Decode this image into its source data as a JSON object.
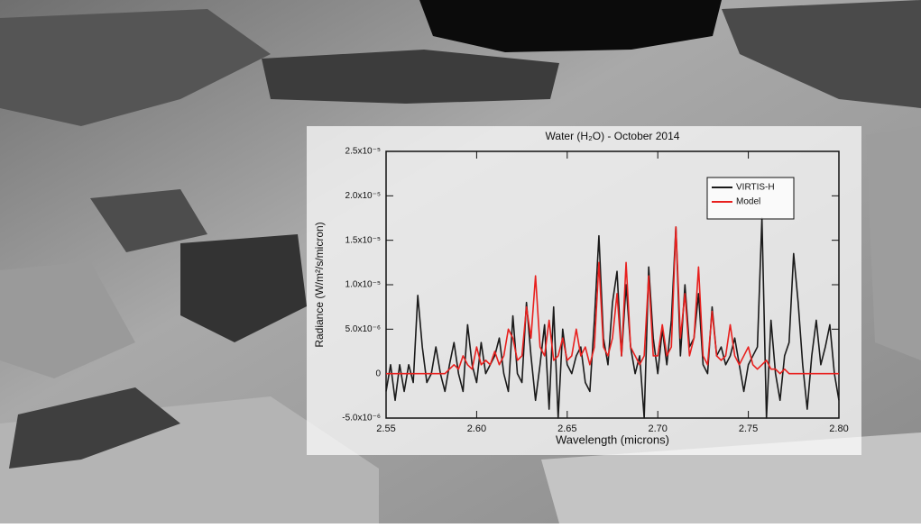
{
  "chart_data": {
    "type": "line",
    "title": "Water (H₂O) - October 2014",
    "x_label": "Wavelength (microns)",
    "y_label": "Radiance (W/m²/s/micron)",
    "xlim": [
      2.55,
      2.8
    ],
    "xticks": [
      2.55,
      {
        "value": 2.6,
        "label": "2.60"
      },
      2.65,
      {
        "value": 2.7,
        "label": "2.70"
      },
      2.75,
      {
        "value": 2.8,
        "label": "2.80"
      }
    ],
    "ylim": [
      -5e-06,
      2.5e-05
    ],
    "yticks": [
      {
        "value": -5e-06,
        "label": "-5.0x10⁻⁶"
      },
      0,
      {
        "value": 5e-06,
        "label": "5.0x10⁻⁶"
      },
      {
        "value": 1e-05,
        "label": "1.0x10⁻⁵"
      },
      {
        "value": 1.5e-05,
        "label": "1.5x10⁻⁵"
      },
      {
        "value": 2e-05,
        "label": "2.0x10⁻⁵"
      },
      {
        "value": 2.5e-05,
        "label": "2.5x10⁻⁵"
      }
    ],
    "legend": "upper right",
    "x": [
      2.55,
      2.5525,
      2.555,
      2.5575,
      2.56,
      2.5625,
      2.565,
      2.5675,
      2.57,
      2.5725,
      2.575,
      2.5775,
      2.58,
      2.5825,
      2.585,
      2.5875,
      2.59,
      2.5925,
      2.595,
      2.5975,
      2.6,
      2.6025,
      2.605,
      2.6075,
      2.61,
      2.6125,
      2.615,
      2.6175,
      2.62,
      2.6225,
      2.625,
      2.6275,
      2.63,
      2.6325,
      2.635,
      2.6375,
      2.64,
      2.6425,
      2.645,
      2.6475,
      2.65,
      2.6525,
      2.655,
      2.6575,
      2.66,
      2.6625,
      2.665,
      2.6675,
      2.67,
      2.6725,
      2.675,
      2.6775,
      2.68,
      2.6825,
      2.685,
      2.6875,
      2.69,
      2.6925,
      2.695,
      2.6975,
      2.7,
      2.7025,
      2.705,
      2.7075,
      2.71,
      2.7125,
      2.715,
      2.7175,
      2.72,
      2.7225,
      2.725,
      2.7275,
      2.73,
      2.7325,
      2.735,
      2.7375,
      2.74,
      2.7425,
      2.745,
      2.7475,
      2.75,
      2.7525,
      2.755,
      2.7575,
      2.76,
      2.7625,
      2.765,
      2.7675,
      2.77,
      2.7725,
      2.775,
      2.7775,
      2.78,
      2.7825,
      2.785,
      2.7875,
      2.79,
      2.7925,
      2.795,
      2.7975,
      2.8
    ],
    "series": [
      {
        "name": "VIRTIS-H",
        "color": "#1a1a1a",
        "values": [
          -2e-06,
          1e-06,
          -3e-06,
          1e-06,
          -2e-06,
          1e-06,
          -1e-06,
          8.8e-06,
          3e-06,
          -1e-06,
          0,
          3e-06,
          0,
          -2e-06,
          1e-06,
          3.5e-06,
          0,
          -2e-06,
          5.5e-06,
          1e-06,
          -1e-06,
          3.5e-06,
          0,
          1e-06,
          2e-06,
          4e-06,
          0,
          -2e-06,
          6.5e-06,
          0,
          -1e-06,
          8e-06,
          2e-06,
          -3e-06,
          1e-06,
          5.5e-06,
          -4e-06,
          7.5e-06,
          -5e-06,
          5e-06,
          1e-06,
          0,
          2e-06,
          3e-06,
          -1e-06,
          -2e-06,
          6e-06,
          1.55e-05,
          4e-06,
          1e-06,
          8e-06,
          1.15e-05,
          2e-06,
          1e-05,
          3e-06,
          0,
          2e-06,
          -5e-06,
          1.2e-05,
          4e-06,
          0,
          5e-06,
          1e-06,
          6e-06,
          1.65e-05,
          2e-06,
          1e-05,
          3e-06,
          4e-06,
          9e-06,
          1e-06,
          0,
          7.5e-06,
          2e-06,
          3e-06,
          1e-06,
          2e-06,
          4e-06,
          1e-06,
          -2e-06,
          1e-06,
          2e-06,
          3e-06,
          1.75e-05,
          -5e-06,
          6e-06,
          0,
          -3e-06,
          2e-06,
          3.5e-06,
          1.35e-05,
          8e-06,
          1e-06,
          -4e-06,
          2e-06,
          6e-06,
          1e-06,
          3e-06,
          5.5e-06,
          0,
          -3e-06
        ]
      },
      {
        "name": "Model",
        "color": "#e8201e",
        "values": [
          0,
          0,
          0,
          0,
          0,
          0,
          0,
          0,
          0,
          0,
          0,
          0,
          0,
          0,
          5e-07,
          1e-06,
          5e-07,
          2e-06,
          1e-06,
          5e-07,
          3e-06,
          1e-06,
          1.5e-06,
          1e-06,
          2.5e-06,
          1e-06,
          2e-06,
          5e-06,
          4e-06,
          1.5e-06,
          2e-06,
          7.5e-06,
          4e-06,
          1.1e-05,
          3e-06,
          2e-06,
          6e-06,
          1.5e-06,
          2e-06,
          4e-06,
          1.5e-06,
          2e-06,
          5e-06,
          2e-06,
          3e-06,
          1e-06,
          3e-06,
          1.25e-05,
          3e-06,
          2e-06,
          4e-06,
          9e-06,
          2e-06,
          1.25e-05,
          3e-06,
          2e-06,
          1e-06,
          2e-06,
          1.1e-05,
          2e-06,
          2e-06,
          5.5e-06,
          2e-06,
          3e-06,
          1.65e-05,
          4e-06,
          9e-06,
          2e-06,
          4e-06,
          1.2e-05,
          2e-06,
          1e-06,
          7e-06,
          2e-06,
          1.5e-06,
          2e-06,
          5.5e-06,
          2e-06,
          1e-06,
          2e-06,
          3e-06,
          1e-06,
          5e-07,
          1e-06,
          1.5e-06,
          5e-07,
          5e-07,
          0,
          5e-07,
          0,
          0,
          0,
          0,
          0,
          0,
          0,
          0,
          0,
          0,
          0,
          0
        ]
      }
    ]
  }
}
